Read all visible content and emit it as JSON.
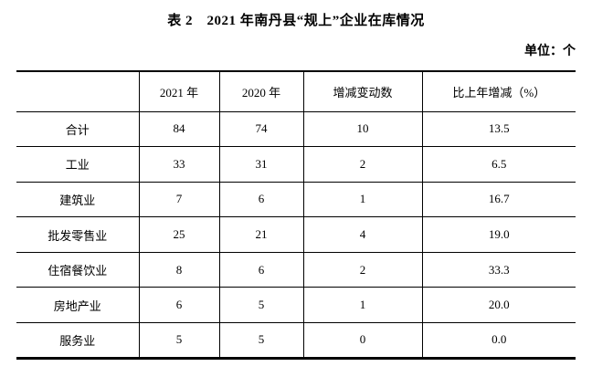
{
  "title": "表 2　2021 年南丹县“规上”企业在库情况",
  "unit_label": "单位：个",
  "table": {
    "headers": {
      "category": "",
      "y2021": "2021 年",
      "y2020": "2020 年",
      "change": "增减变动数",
      "pct": "比上年增减（%）"
    },
    "rows": [
      {
        "category": "合计",
        "y2021": "84",
        "y2020": "74",
        "change": "10",
        "pct": "13.5"
      },
      {
        "category": "工业",
        "y2021": "33",
        "y2020": "31",
        "change": "2",
        "pct": "6.5"
      },
      {
        "category": "建筑业",
        "y2021": "7",
        "y2020": "6",
        "change": "1",
        "pct": "16.7"
      },
      {
        "category": "批发零售业",
        "y2021": "25",
        "y2020": "21",
        "change": "4",
        "pct": "19.0"
      },
      {
        "category": "住宿餐饮业",
        "y2021": "8",
        "y2020": "6",
        "change": "2",
        "pct": "33.3"
      },
      {
        "category": "房地产业",
        "y2021": "6",
        "y2020": "5",
        "change": "1",
        "pct": "20.0"
      },
      {
        "category": "服务业",
        "y2021": "5",
        "y2020": "5",
        "change": "0",
        "pct": "0.0"
      }
    ]
  }
}
